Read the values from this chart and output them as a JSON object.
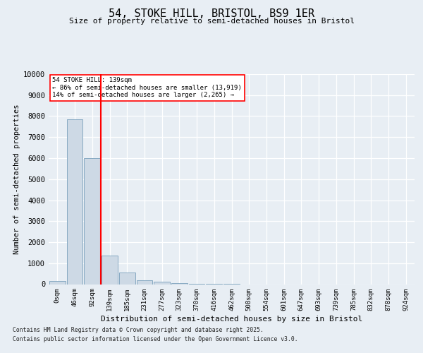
{
  "title": "54, STOKE HILL, BRISTOL, BS9 1ER",
  "subtitle": "Size of property relative to semi-detached houses in Bristol",
  "xlabel": "Distribution of semi-detached houses by size in Bristol",
  "ylabel": "Number of semi-detached properties",
  "bar_labels": [
    "0sqm",
    "46sqm",
    "92sqm",
    "139sqm",
    "185sqm",
    "231sqm",
    "277sqm",
    "323sqm",
    "370sqm",
    "416sqm",
    "462sqm",
    "508sqm",
    "554sqm",
    "601sqm",
    "647sqm",
    "693sqm",
    "739sqm",
    "785sqm",
    "832sqm",
    "878sqm",
    "924sqm"
  ],
  "bar_values": [
    150,
    7850,
    6000,
    1350,
    550,
    200,
    120,
    50,
    10,
    2,
    1,
    0,
    0,
    0,
    0,
    0,
    0,
    0,
    0,
    0,
    0
  ],
  "bar_color": "#cdd9e5",
  "bar_edge_color": "#7aa0bc",
  "vline_x_index": 3,
  "vline_color": "red",
  "annotation_title": "54 STOKE HILL: 139sqm",
  "annotation_line1": "← 86% of semi-detached houses are smaller (13,919)",
  "annotation_line2": "14% of semi-detached houses are larger (2,265) →",
  "ylim": [
    0,
    10000
  ],
  "yticks": [
    0,
    1000,
    2000,
    3000,
    4000,
    5000,
    6000,
    7000,
    8000,
    9000,
    10000
  ],
  "footer1": "Contains HM Land Registry data © Crown copyright and database right 2025.",
  "footer2": "Contains public sector information licensed under the Open Government Licence v3.0.",
  "bg_color": "#e8eef4",
  "plot_bg_color": "#e8eef4",
  "grid_color": "#ffffff"
}
